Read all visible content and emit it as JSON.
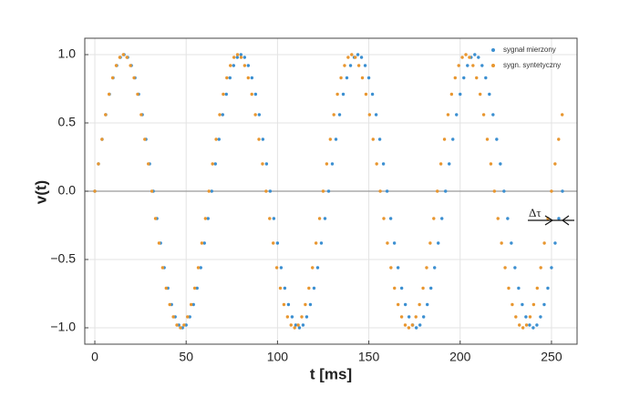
{
  "chart_data": {
    "type": "scatter",
    "xlabel": "t [ms]",
    "ylabel": "v(t)",
    "xlim": [
      -5.5,
      264
    ],
    "ylim": [
      -1.12,
      1.12
    ],
    "xticks": [
      0,
      50,
      100,
      150,
      200,
      250
    ],
    "yticks": [
      {
        "value": 1.0,
        "label": "1.0"
      },
      {
        "value": 0.5,
        "label": "0.5"
      },
      {
        "value": 0,
        "label": "0.0"
      },
      {
        "value": -0.5,
        "label": "−0.5"
      },
      {
        "value": -1.0,
        "label": "−1.0"
      }
    ],
    "grid": true,
    "legend": "upper right",
    "annotation": "Δτ",
    "series": [
      {
        "name": "sygnał mierzony",
        "color": "#3b8fd1",
        "x": [
          0,
          2,
          4,
          6,
          8,
          10,
          12,
          14,
          16,
          18,
          20,
          22,
          24,
          26,
          28,
          30,
          32,
          34,
          36,
          38,
          40,
          42,
          44,
          46,
          48,
          50,
          52,
          54,
          56,
          58,
          60,
          62,
          64,
          66,
          68,
          70,
          72,
          74,
          76,
          78,
          80,
          82,
          84,
          86,
          88,
          90,
          92,
          94,
          96,
          98,
          100,
          102,
          104,
          106,
          108,
          110,
          112,
          114,
          116,
          118,
          120,
          122,
          124,
          126,
          128,
          130,
          132,
          134,
          136,
          138,
          140,
          142,
          144,
          146,
          148,
          150,
          152,
          154,
          156,
          158,
          160,
          162,
          164,
          166,
          168,
          170,
          172,
          174,
          176,
          178,
          180,
          182,
          184,
          186,
          188,
          190,
          192,
          194,
          196,
          198,
          200,
          202,
          204,
          206,
          208,
          210,
          212,
          214,
          216,
          218,
          220,
          222,
          224,
          226,
          228,
          230,
          232,
          234,
          236,
          238,
          240,
          242,
          244,
          246,
          248,
          250,
          252,
          254,
          256
        ],
        "values": [
          0,
          0.2,
          0.38,
          0.56,
          0.71,
          0.83,
          0.92,
          0.98,
          1,
          0.98,
          0.92,
          0.83,
          0.71,
          0.56,
          0.38,
          0.2,
          0,
          -0.2,
          -0.38,
          -0.56,
          -0.71,
          -0.83,
          -0.92,
          -0.98,
          -1,
          -0.98,
          -0.92,
          -0.83,
          -0.71,
          -0.56,
          -0.38,
          -0.2,
          0,
          0.2,
          0.38,
          0.56,
          0.71,
          0.83,
          0.92,
          0.98,
          1,
          0.98,
          0.92,
          0.83,
          0.71,
          0.56,
          0.38,
          0.2,
          0,
          -0.2,
          -0.38,
          -0.56,
          -0.71,
          -0.83,
          -0.92,
          -0.98,
          -1,
          -0.98,
          -0.92,
          -0.83,
          -0.71,
          -0.56,
          -0.38,
          -0.2,
          0,
          0.2,
          0.38,
          0.56,
          0.71,
          0.83,
          0.92,
          0.98,
          1,
          0.98,
          0.92,
          0.83,
          0.71,
          0.56,
          0.38,
          0.2,
          0,
          -0.2,
          -0.38,
          -0.56,
          -0.71,
          -0.83,
          -0.92,
          -0.98,
          -1,
          -0.98,
          -0.92,
          -0.83,
          -0.71,
          -0.56,
          -0.38,
          -0.2,
          0,
          0.2,
          0.38,
          0.56,
          0.71,
          0.83,
          0.92,
          0.98,
          1,
          0.98,
          0.92,
          0.83,
          0.71,
          0.56,
          0.38,
          0.2,
          0,
          -0.2,
          -0.38,
          -0.56,
          -0.71,
          -0.83,
          -0.92,
          -0.98,
          -1,
          -0.98,
          -0.92,
          -0.83,
          -0.71,
          -0.56,
          -0.38,
          -0.2,
          0
        ]
      },
      {
        "name": "sygn. syntetyczny",
        "color": "#e8962f",
        "x": [
          0,
          1.95,
          3.91,
          5.86,
          7.81,
          9.77,
          11.72,
          13.67,
          15.63,
          17.58,
          19.53,
          21.48,
          23.44,
          25.39,
          27.34,
          29.3,
          31.25,
          33.2,
          35.16,
          37.11,
          39.06,
          41.02,
          42.97,
          44.92,
          46.88,
          48.83,
          50.78,
          52.73,
          54.69,
          56.64,
          58.59,
          60.55,
          62.5,
          64.45,
          66.41,
          68.36,
          70.31,
          72.27,
          74.22,
          76.17,
          78.13,
          80.08,
          82.03,
          83.98,
          85.94,
          87.89,
          89.84,
          91.8,
          93.75,
          95.7,
          97.66,
          99.61,
          101.56,
          103.52,
          105.47,
          107.42,
          109.38,
          111.33,
          113.28,
          115.23,
          117.19,
          119.14,
          121.09,
          123.05,
          125,
          126.95,
          128.91,
          130.86,
          132.81,
          134.77,
          136.72,
          138.67,
          140.63,
          142.58,
          144.53,
          146.48,
          148.44,
          150.39,
          152.34,
          154.3,
          156.25,
          158.2,
          160.16,
          162.11,
          164.06,
          166.02,
          167.97,
          169.92,
          171.88,
          173.83,
          175.78,
          177.73,
          179.69,
          181.64,
          183.59,
          185.55,
          187.5,
          189.45,
          191.41,
          193.36,
          195.31,
          197.27,
          199.22,
          201.17,
          203.13,
          205.08,
          207.03,
          208.98,
          210.94,
          212.89,
          214.84,
          216.8,
          218.75,
          220.7,
          222.66,
          224.61,
          226.56,
          228.52,
          230.47,
          232.42,
          234.38,
          236.33,
          238.28,
          240.23,
          242.19,
          244.14,
          246.09,
          248.05,
          250,
          251.95,
          253.91,
          255.86
        ],
        "values": [
          0,
          0.2,
          0.38,
          0.56,
          0.71,
          0.83,
          0.92,
          0.98,
          1,
          0.98,
          0.92,
          0.83,
          0.71,
          0.56,
          0.38,
          0.2,
          0,
          -0.2,
          -0.38,
          -0.56,
          -0.71,
          -0.83,
          -0.92,
          -0.98,
          -1,
          -0.98,
          -0.92,
          -0.83,
          -0.71,
          -0.56,
          -0.38,
          -0.2,
          0,
          0.2,
          0.38,
          0.56,
          0.71,
          0.83,
          0.92,
          0.98,
          1,
          0.98,
          0.92,
          0.83,
          0.71,
          0.56,
          0.38,
          0.2,
          0,
          -0.2,
          -0.38,
          -0.56,
          -0.71,
          -0.83,
          -0.92,
          -0.98,
          -1,
          -0.98,
          -0.92,
          -0.83,
          -0.71,
          -0.56,
          -0.38,
          -0.2,
          0,
          0.2,
          0.38,
          0.56,
          0.71,
          0.83,
          0.92,
          0.98,
          1,
          0.98,
          0.92,
          0.83,
          0.71,
          0.56,
          0.38,
          0.2,
          0,
          -0.2,
          -0.38,
          -0.56,
          -0.71,
          -0.83,
          -0.92,
          -0.98,
          -1,
          -0.98,
          -0.92,
          -0.83,
          -0.71,
          -0.56,
          -0.38,
          -0.2,
          0,
          0.2,
          0.38,
          0.56,
          0.71,
          0.83,
          0.92,
          0.98,
          1,
          0.98,
          0.92,
          0.83,
          0.71,
          0.56,
          0.38,
          0.2,
          0,
          -0.2,
          -0.38,
          -0.56,
          -0.71,
          -0.83,
          -0.92,
          -0.98,
          -1,
          -0.98,
          -0.92,
          -0.83,
          -0.71,
          -0.56,
          -0.38,
          -0.2,
          0,
          0.2,
          0.38,
          0.56
        ]
      }
    ]
  }
}
